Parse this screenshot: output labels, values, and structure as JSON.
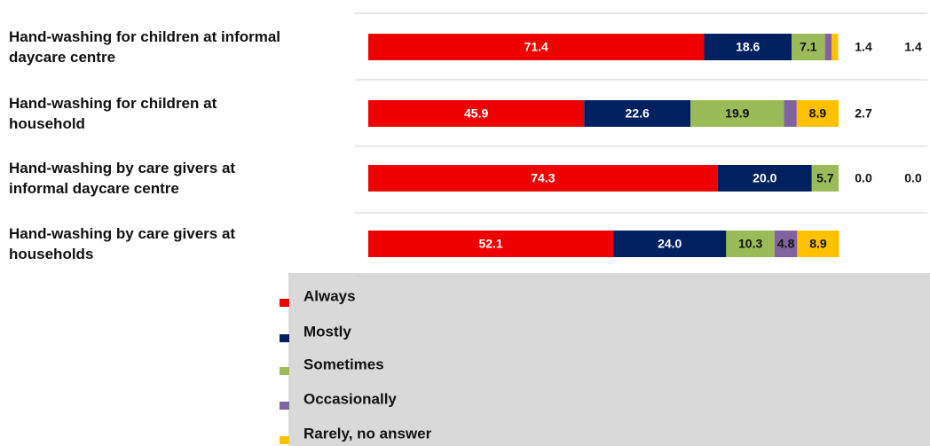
{
  "chart_data": {
    "type": "stacked-bar-horizontal",
    "categories": [
      "Hand-washing for children at informal daycare centre",
      "Hand-washing for children at household",
      "Hand-washing by care givers at informal daycare centre",
      "Hand-washing by care givers at households"
    ],
    "xlim": [
      0,
      100
    ],
    "series": [
      {
        "name": "Always",
        "color": "#ee0000",
        "values": [
          71.4,
          45.9,
          74.3,
          52.1
        ],
        "value_labels": [
          "71.4",
          "45.9",
          "74.3",
          "52.1"
        ]
      },
      {
        "name": "Mostly",
        "color": "#002060",
        "values": [
          18.6,
          22.6,
          20,
          24
        ],
        "value_labels": [
          "18.6",
          "22.6",
          "20.0",
          "24.0"
        ]
      },
      {
        "name": "Sometimes",
        "color": "#9bbb59",
        "values": [
          7.1,
          19.9,
          5.7,
          10.3
        ],
        "value_labels": [
          "7.1",
          "19.9",
          "5.7",
          "10.3"
        ]
      },
      {
        "name": "Occasionally",
        "color": "#8064a2",
        "values": [
          1.4,
          2.7,
          0,
          4.8
        ],
        "value_labels": [
          "1.4",
          "2.7",
          "0.0",
          "4.8"
        ]
      },
      {
        "name": "Rarely, no answer",
        "color": "#ffc000",
        "values": [
          1.4,
          8.9,
          0,
          8.9
        ],
        "value_labels": [
          "1.4",
          "8.9",
          "0.0",
          "8.9"
        ]
      }
    ],
    "legend": "bottom"
  }
}
